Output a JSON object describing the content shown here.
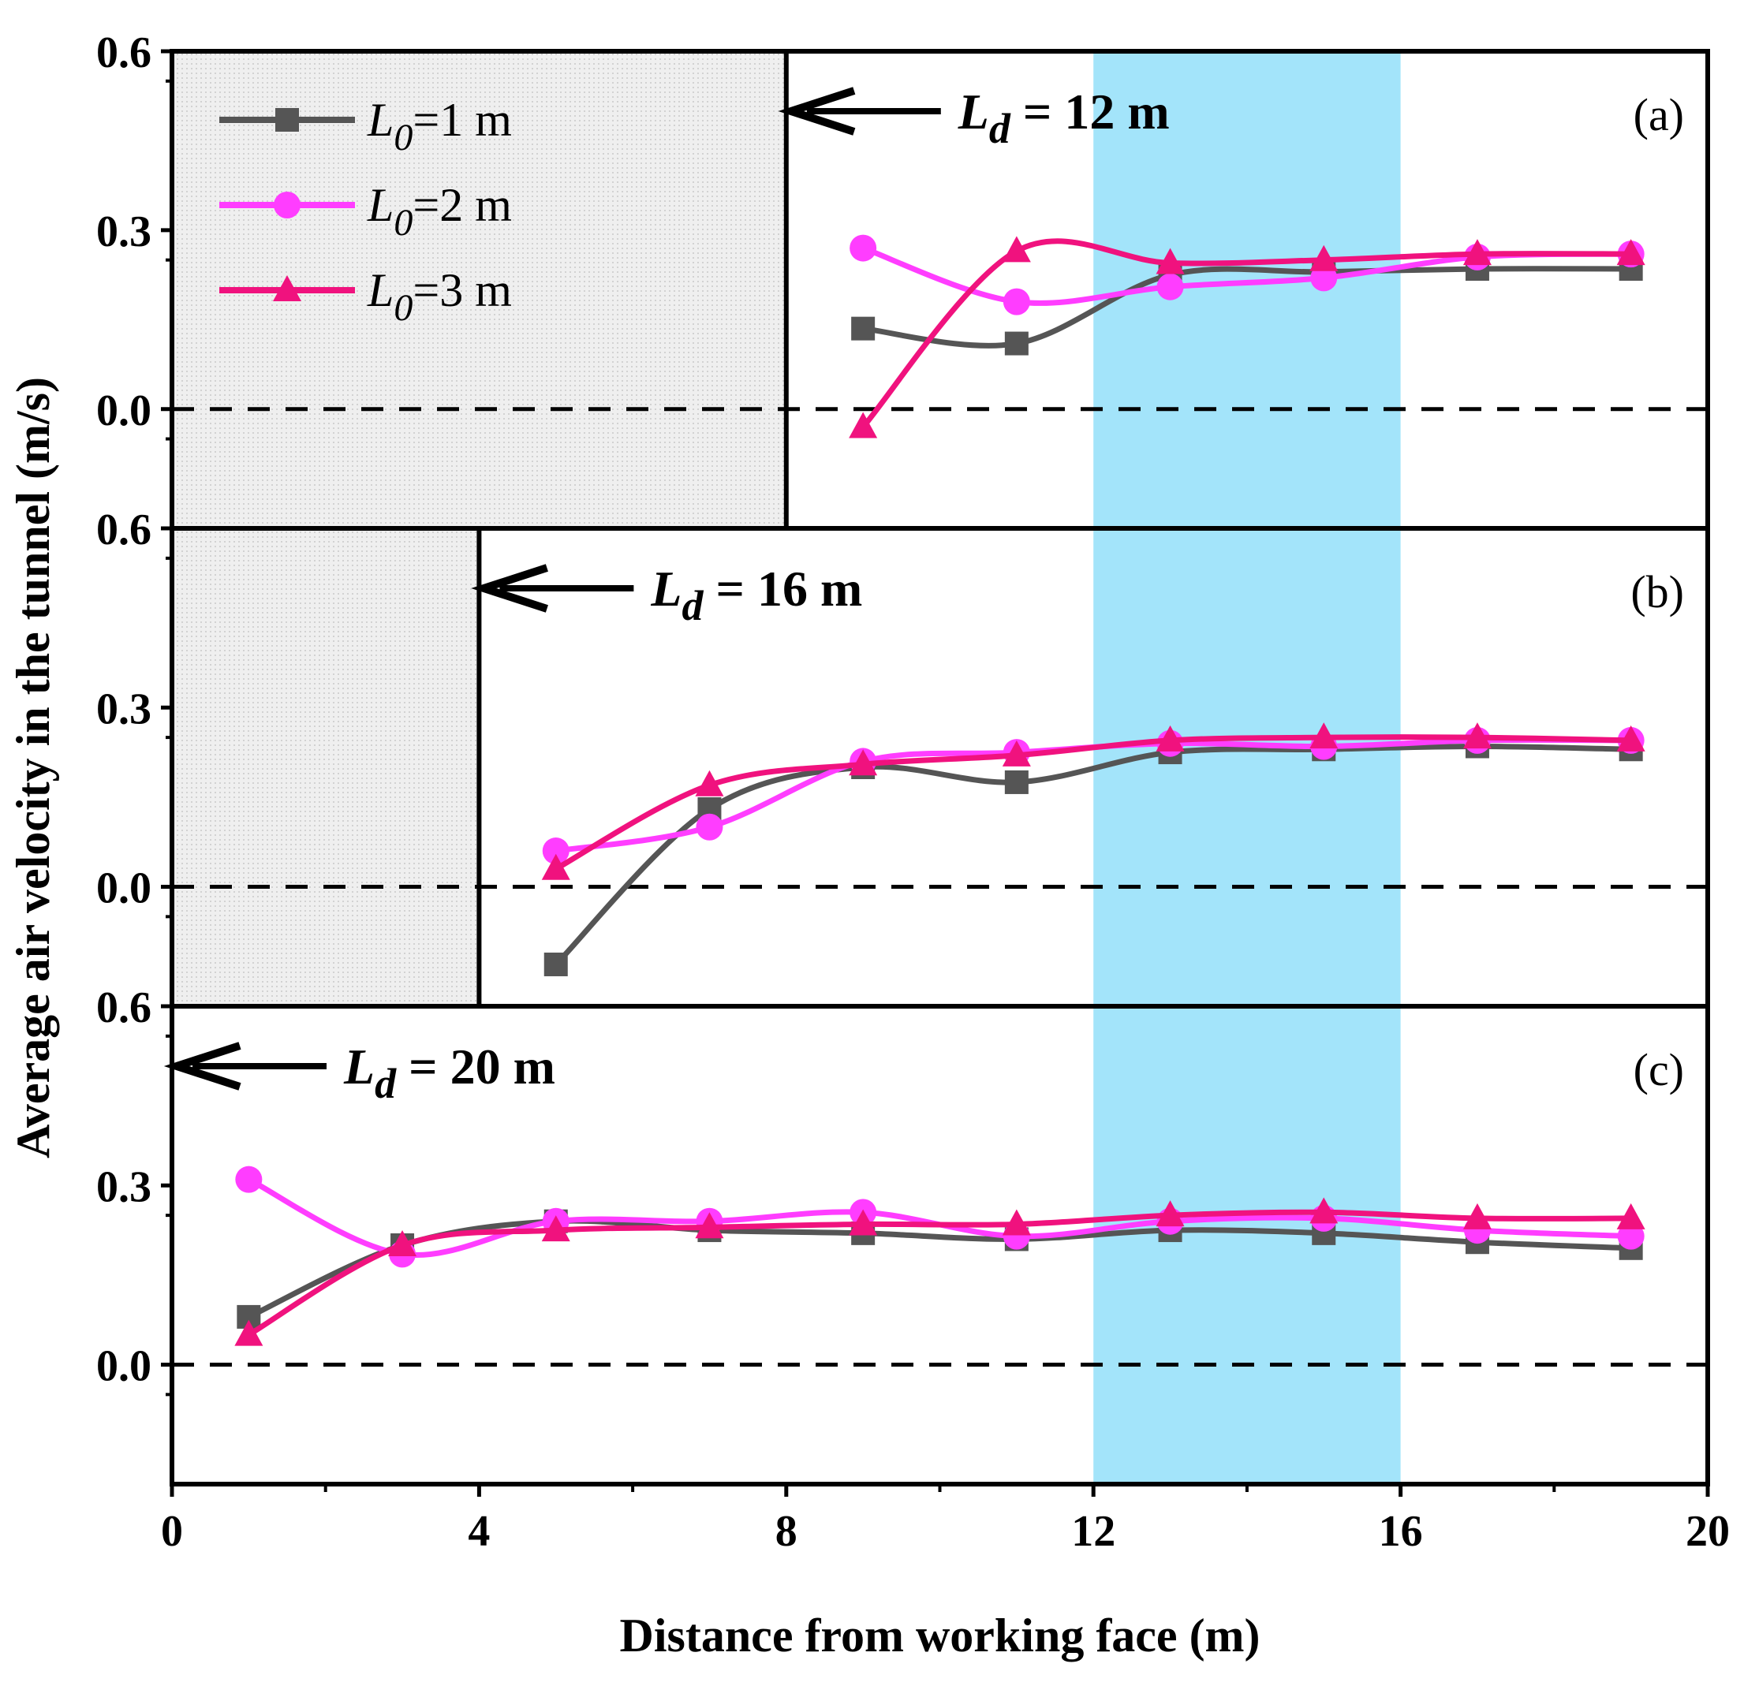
{
  "chart_data": {
    "type": "line",
    "xlabel": "Distance from working face (m)",
    "ylabel": "Average air velocity in the tunnel (m/s)",
    "xlim": [
      0,
      20
    ],
    "x_ticks": [
      "0",
      "4",
      "8",
      "12",
      "16",
      "20"
    ],
    "highlight_band": {
      "x_from": 12,
      "x_to": 16,
      "color": "#a3e4fa"
    },
    "colors": {
      "L0_1": "#555555",
      "L0_2": "#ff3dff",
      "L0_3": "#f0127e",
      "zero_line": "#000000",
      "shaded_region": "#ebebeb"
    },
    "legend": [
      {
        "prefix": "L",
        "sub": "0",
        "rest": "=1 m",
        "marker": "square"
      },
      {
        "prefix": "L",
        "sub": "0",
        "rest": "=2 m",
        "marker": "circle"
      },
      {
        "prefix": "L",
        "sub": "0",
        "rest": "=3 m",
        "marker": "triangle"
      }
    ],
    "panels": [
      {
        "label": "(a)",
        "ylim": [
          -0.2,
          0.6
        ],
        "y_ticks": [
          "0.0",
          "0.3",
          "0.6"
        ],
        "duct": {
          "x": 8,
          "ld_prefix": "L",
          "ld_sub": "d",
          "ld_rest": " = 12 m"
        },
        "series": [
          {
            "name": "L0=1 m",
            "x": [
              9,
              11,
              13,
              15,
              17,
              19
            ],
            "values": [
              0.135,
              0.11,
              0.225,
              0.23,
              0.235,
              0.235
            ]
          },
          {
            "name": "L0=2 m",
            "x": [
              9,
              11,
              13,
              15,
              17,
              19
            ],
            "values": [
              0.27,
              0.18,
              0.205,
              0.22,
              0.255,
              0.26
            ]
          },
          {
            "name": "L0=3 m",
            "x": [
              9,
              11,
              13,
              15,
              17,
              19
            ],
            "values": [
              -0.03,
              0.265,
              0.245,
              0.25,
              0.26,
              0.26
            ]
          }
        ]
      },
      {
        "label": "(b)",
        "ylim": [
          -0.2,
          0.6
        ],
        "y_ticks": [
          "0.0",
          "0.3",
          "0.6"
        ],
        "duct": {
          "x": 4,
          "ld_prefix": "L",
          "ld_sub": "d",
          "ld_rest": " = 16 m"
        },
        "series": [
          {
            "name": "L0=1 m",
            "x": [
              5,
              7,
              9,
              11,
              13,
              15,
              17,
              19
            ],
            "values": [
              -0.13,
              0.13,
              0.2,
              0.175,
              0.225,
              0.23,
              0.235,
              0.23
            ]
          },
          {
            "name": "L0=2 m",
            "x": [
              5,
              7,
              9,
              11,
              13,
              15,
              17,
              19
            ],
            "values": [
              0.06,
              0.1,
              0.21,
              0.225,
              0.24,
              0.235,
              0.245,
              0.245
            ]
          },
          {
            "name": "L0=3 m",
            "x": [
              5,
              7,
              9,
              11,
              13,
              15,
              17,
              19
            ],
            "values": [
              0.03,
              0.17,
              0.205,
              0.22,
              0.245,
              0.25,
              0.25,
              0.245
            ]
          }
        ]
      },
      {
        "label": "(c)",
        "ylim": [
          -0.2,
          0.6
        ],
        "y_ticks": [
          "0.0",
          "0.3",
          "0.6"
        ],
        "duct": {
          "x": 0,
          "ld_prefix": "L",
          "ld_sub": "d",
          "ld_rest": " = 20 m"
        },
        "series": [
          {
            "name": "L0=1 m",
            "x": [
              1,
              3,
              5,
              7,
              9,
              11,
              13,
              15,
              17,
              19
            ],
            "values": [
              0.08,
              0.2,
              0.24,
              0.225,
              0.22,
              0.21,
              0.225,
              0.22,
              0.205,
              0.195
            ]
          },
          {
            "name": "L0=2 m",
            "x": [
              1,
              3,
              5,
              7,
              9,
              11,
              13,
              15,
              17,
              19
            ],
            "values": [
              0.31,
              0.185,
              0.24,
              0.24,
              0.255,
              0.215,
              0.24,
              0.245,
              0.225,
              0.215
            ]
          },
          {
            "name": "L0=3 m",
            "x": [
              1,
              3,
              5,
              7,
              9,
              11,
              13,
              15,
              17,
              19
            ],
            "values": [
              0.05,
              0.2,
              0.225,
              0.23,
              0.235,
              0.235,
              0.25,
              0.255,
              0.245,
              0.245
            ]
          }
        ]
      }
    ]
  }
}
